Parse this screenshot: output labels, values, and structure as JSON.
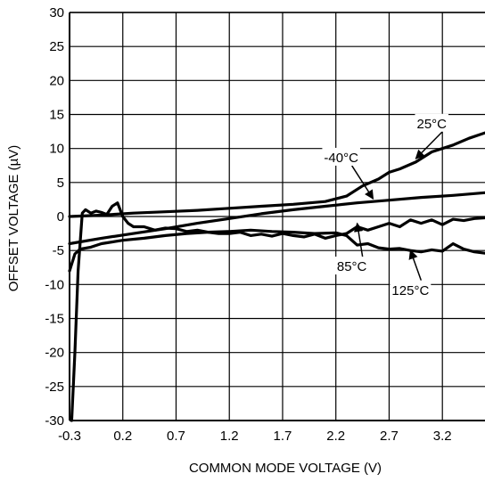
{
  "chart_data": {
    "type": "line",
    "xlabel": "COMMON MODE VOLTAGE (V)",
    "ylabel": "OFFSET VOLTAGE (µV)",
    "xlim": [
      -0.3,
      3.6
    ],
    "ylim": [
      -30,
      30
    ],
    "x_ticks": [
      -0.3,
      0.2,
      0.7,
      1.2,
      1.7,
      2.2,
      2.7,
      3.2
    ],
    "x_tick_labels": [
      "-0.3",
      "0.2",
      "0.7",
      "1.2",
      "1.7",
      "2.2",
      "2.7",
      "3.2"
    ],
    "y_ticks": [
      -30,
      -25,
      -20,
      -15,
      -10,
      -5,
      0,
      5,
      10,
      15,
      20,
      25,
      30
    ],
    "y_tick_labels": [
      "-30",
      "-25",
      "-20",
      "-15",
      "-10",
      "-5",
      "0",
      "5",
      "10",
      "15",
      "20",
      "25",
      "30"
    ],
    "grid": true,
    "series": [
      {
        "name": "25°C",
        "x": [
          -0.3,
          0.0,
          0.3,
          0.6,
          0.9,
          1.2,
          1.5,
          1.8,
          2.1,
          2.3,
          2.45,
          2.6,
          2.7,
          2.8,
          2.95,
          3.1,
          3.3,
          3.45,
          3.6
        ],
        "y": [
          0.0,
          0.2,
          0.5,
          0.7,
          0.9,
          1.2,
          1.5,
          1.8,
          2.2,
          3.0,
          4.5,
          5.5,
          6.5,
          7.0,
          8.0,
          9.5,
          10.5,
          11.5,
          12.3
        ]
      },
      {
        "name": "-40°C",
        "x": [
          -0.3,
          0.0,
          0.3,
          0.6,
          0.9,
          1.2,
          1.5,
          1.8,
          2.1,
          2.4,
          2.7,
          3.0,
          3.3,
          3.6
        ],
        "y": [
          -4.0,
          -3.2,
          -2.5,
          -1.8,
          -1.0,
          -0.3,
          0.4,
          1.0,
          1.5,
          2.0,
          2.4,
          2.8,
          3.1,
          3.5
        ]
      },
      {
        "name": "85°C",
        "x": [
          -0.28,
          -0.25,
          -0.22,
          -0.18,
          -0.15,
          -0.1,
          -0.05,
          0.0,
          0.05,
          0.1,
          0.15,
          0.2,
          0.25,
          0.3,
          0.4,
          0.5,
          0.6,
          0.7,
          0.8,
          0.9,
          1.0,
          1.1,
          1.2,
          1.3,
          1.4,
          1.5,
          1.6,
          1.7,
          1.8,
          1.9,
          2.0,
          2.1,
          2.2,
          2.3,
          2.4,
          2.5,
          2.6,
          2.7,
          2.8,
          2.9,
          3.0,
          3.1,
          3.2,
          3.3,
          3.4,
          3.5,
          3.6
        ],
        "y": [
          -30.0,
          -20.0,
          -8.0,
          0.5,
          1.0,
          0.5,
          0.8,
          0.6,
          0.3,
          1.5,
          2.0,
          0.0,
          -1.0,
          -1.5,
          -1.5,
          -2.0,
          -1.7,
          -1.8,
          -2.2,
          -2.0,
          -2.3,
          -2.5,
          -2.5,
          -2.3,
          -2.8,
          -2.6,
          -2.9,
          -2.5,
          -2.8,
          -3.0,
          -2.6,
          -3.2,
          -2.8,
          -2.5,
          -1.5,
          -2.0,
          -1.5,
          -1.0,
          -1.5,
          -0.5,
          -1.0,
          -0.5,
          -1.2,
          -0.4,
          -0.6,
          -0.3,
          -0.2
        ]
      },
      {
        "name": "125°C",
        "x": [
          -0.3,
          -0.25,
          -0.2,
          -0.1,
          0.0,
          0.2,
          0.4,
          0.6,
          0.8,
          1.0,
          1.2,
          1.4,
          1.6,
          1.8,
          2.0,
          2.2,
          2.3,
          2.4,
          2.5,
          2.6,
          2.7,
          2.8,
          2.9,
          3.0,
          3.1,
          3.2,
          3.3,
          3.4,
          3.5,
          3.6
        ],
        "y": [
          -8.0,
          -5.5,
          -4.8,
          -4.5,
          -4.0,
          -3.5,
          -3.2,
          -2.8,
          -2.5,
          -2.3,
          -2.2,
          -2.0,
          -2.2,
          -2.3,
          -2.5,
          -2.4,
          -2.8,
          -4.2,
          -4.0,
          -4.6,
          -4.8,
          -4.7,
          -5.0,
          -5.2,
          -4.9,
          -5.1,
          -4.0,
          -4.8,
          -5.2,
          -5.4
        ]
      }
    ],
    "annotations": [
      {
        "text": "25°C",
        "x": 3.1,
        "y": 13.0,
        "arrow_to": [
          2.95,
          8.5
        ]
      },
      {
        "text": "-40°C",
        "x": 2.25,
        "y": 8.0,
        "arrow_to": [
          2.55,
          2.6
        ]
      },
      {
        "text": "85°C",
        "x": 2.35,
        "y": -8.0,
        "arrow_to": [
          2.4,
          -1.0
        ]
      },
      {
        "text": "125°C",
        "x": 2.9,
        "y": -11.5,
        "arrow_to": [
          2.9,
          -5.0
        ]
      }
    ]
  }
}
